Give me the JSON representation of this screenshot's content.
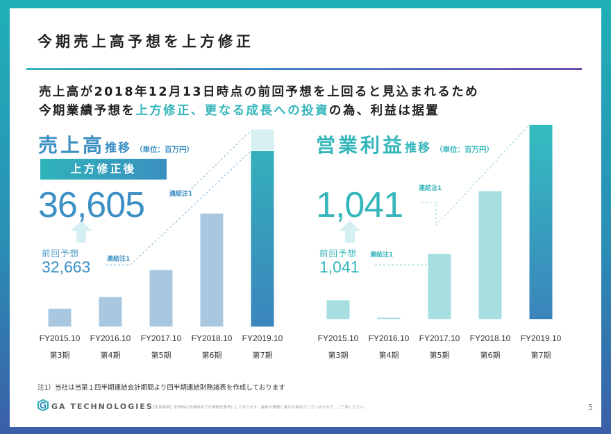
{
  "title": "今期売上高予想を上方修正",
  "lead": {
    "line1": "売上高が2018年12月13日時点の前回予想を上回ると見込まれるため",
    "line2_a": "今期業績予想を",
    "line2_accent": "上方修正、更なる成長への投資",
    "line2_b": "の為、利益は据置"
  },
  "colors": {
    "teal": "#35b6bb",
    "blue": "#4a8fc4",
    "darkblue": "#2f74b4",
    "light_teal": "#a7dfe1",
    "light_blue": "#a9c8e0"
  },
  "revenue": {
    "title_big": "売上高",
    "title_small": "推移",
    "unit": "（単位：百万円）",
    "revised_label": "上方修正後",
    "revised_value": "36,605",
    "revised_note": "連結注1",
    "prev_label": "前回予想",
    "prev_value": "32,663",
    "prev_note": "連結注1"
  },
  "op_income": {
    "title_big": "営業利益",
    "title_small": "推移",
    "unit": "（単位：百万円）",
    "revised_value": "1,041",
    "revised_note": "連結注1",
    "prev_label": "前回予想",
    "prev_value": "1,041",
    "prev_note": "連結注1"
  },
  "chart_data": [
    {
      "type": "bar",
      "title": "売上高推移",
      "categories": [
        "FY2015.10",
        "FY2016.10",
        "FY2017.10",
        "FY2018.10",
        "FY2019.10"
      ],
      "period_labels": [
        "第3期",
        "第4期",
        "第5期",
        "第6期",
        "第7期"
      ],
      "values": [
        3300,
        5500,
        10500,
        21000,
        36605
      ],
      "previous_forecast": 32663,
      "ylim": [
        0,
        37500
      ]
    },
    {
      "type": "bar",
      "title": "営業利益推移",
      "categories": [
        "FY2015.10",
        "FY2016.10",
        "FY2017.10",
        "FY2018.10",
        "FY2019.10"
      ],
      "period_labels": [
        "第3期",
        "第4期",
        "第5期",
        "第6期",
        "第7期"
      ],
      "values": [
        100,
        8,
        350,
        685,
        1041
      ],
      "ylim": [
        -40,
        1041
      ]
    }
  ],
  "footnote": "注1）当社は当第１四半期連結会計期間より四半期連結財務諸表を作成しております",
  "logo_text": "GA TECHNOLOGIES",
  "disclaimer": "【免責事項】本資料は作成時点での情報を参考にしております。最新の情報と異なる場合がございますので、ご了承ください。",
  "page_number": "5"
}
